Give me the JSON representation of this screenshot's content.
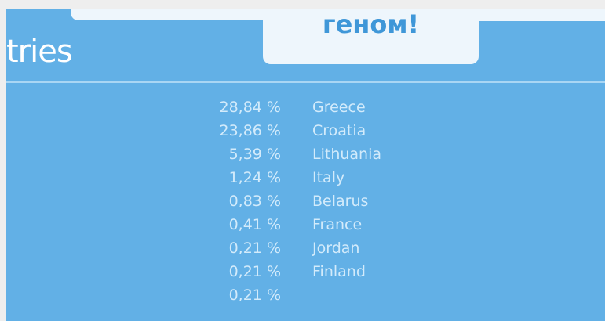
{
  "header": {
    "tab_title": "геном!",
    "heading": "tries"
  },
  "rows": [
    {
      "percent": "28,84 %",
      "country": "Greece"
    },
    {
      "percent": "23,86 %",
      "country": "Croatia"
    },
    {
      "percent": "5,39 %",
      "country": "Lithuania"
    },
    {
      "percent": "1,24 %",
      "country": "Italy"
    },
    {
      "percent": "0,83 %",
      "country": "Belarus"
    },
    {
      "percent": "0,41 %",
      "country": "France"
    },
    {
      "percent": "0,21 %",
      "country": "Jordan"
    },
    {
      "percent": "0,21 %",
      "country": "Finland"
    },
    {
      "percent": "0,21 %",
      "country": ""
    }
  ],
  "colors": {
    "panel": "#62b0e6",
    "tab": "#eef6fc",
    "tab_text": "#3f97d8"
  }
}
